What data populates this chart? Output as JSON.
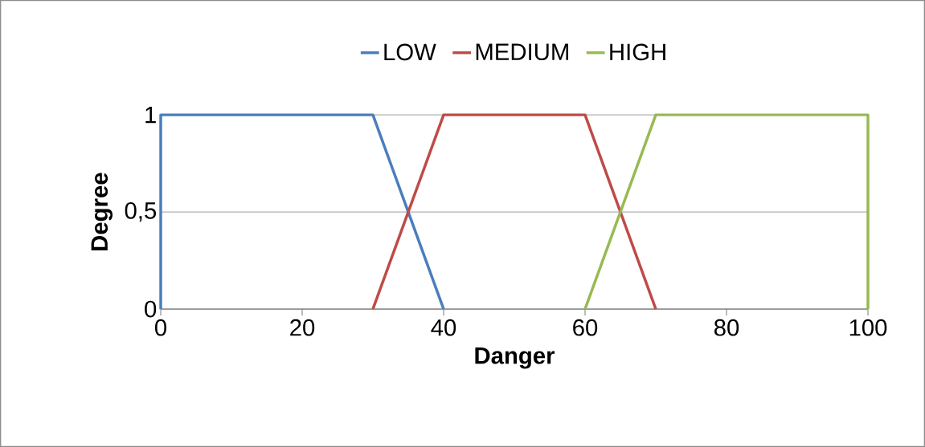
{
  "chart_data": {
    "type": "line",
    "xlabel": "Danger",
    "ylabel": "Degree",
    "xlim": [
      0,
      100
    ],
    "xticks": [
      0,
      20,
      40,
      60,
      80,
      100
    ],
    "ylim": [
      0,
      1
    ],
    "yticks": [
      0,
      {
        "value": 0.5,
        "label": "0,5"
      },
      1
    ],
    "grid": "y",
    "legend": "top",
    "series": [
      {
        "name": "LOW",
        "color": "#4a7ebb",
        "x": [
          0,
          0,
          30,
          40
        ],
        "values": [
          0,
          1,
          1,
          0
        ]
      },
      {
        "name": "MEDIUM",
        "color": "#be4b48",
        "x": [
          30,
          40,
          60,
          70
        ],
        "values": [
          0,
          1,
          1,
          0
        ]
      },
      {
        "name": "HIGH",
        "color": "#98b954",
        "x": [
          60,
          70,
          100,
          100
        ],
        "values": [
          0,
          1,
          1,
          0
        ]
      }
    ]
  }
}
